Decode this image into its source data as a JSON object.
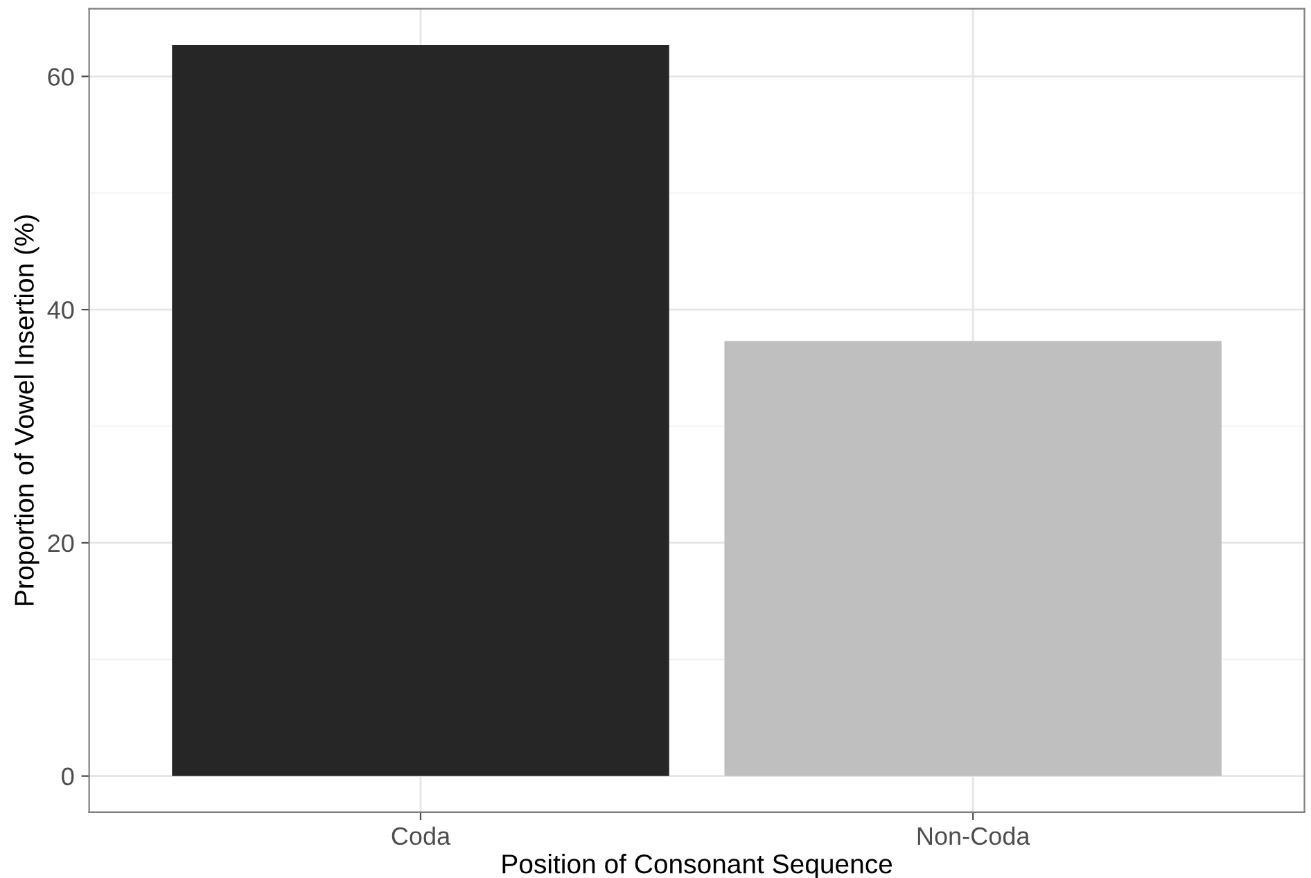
{
  "chart_data": {
    "type": "bar",
    "xlabel": "Position of Consonant Sequence",
    "ylabel": "Proportion of Vowel Insertion (%)",
    "categories": [
      "Coda",
      "Non-Coda"
    ],
    "values": [
      62.7,
      37.3
    ],
    "colors": [
      "#262626",
      "#bfbfbf"
    ],
    "ylim": [
      -3.1,
      65.8
    ],
    "yticks": [
      0,
      20,
      40,
      60
    ],
    "grid": true
  }
}
